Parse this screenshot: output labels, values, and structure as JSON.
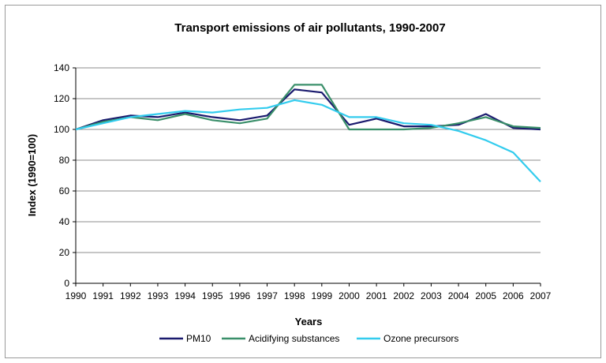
{
  "chart_data": {
    "type": "line",
    "title": "Transport emissions of air pollutants, 1990-2007",
    "xlabel": "Years",
    "ylabel": "Index (1990=100)",
    "ylim": [
      0,
      140
    ],
    "yticks": [
      "0",
      "20",
      "40",
      "60",
      "80",
      "100",
      "120",
      "140"
    ],
    "categories": [
      "1990",
      "1991",
      "1992",
      "1993",
      "1994",
      "1995",
      "1996",
      "1997",
      "1998",
      "1999",
      "2000",
      "2001",
      "2002",
      "2003",
      "2004",
      "2005",
      "2006",
      "2007"
    ],
    "grid": true,
    "legend_position": "bottom",
    "series": [
      {
        "name": "PM10",
        "color": "#1a1a6e",
        "values": [
          100,
          106,
          109,
          108,
          111,
          108,
          106,
          109,
          126,
          124,
          103,
          107,
          102,
          102,
          103,
          110,
          101,
          100
        ]
      },
      {
        "name": "Acidifying substances",
        "color": "#3a8f6a",
        "values": [
          100,
          105,
          108,
          106,
          110,
          106,
          104,
          107,
          129,
          129,
          100,
          100,
          100,
          101,
          104,
          108,
          102,
          101
        ]
      },
      {
        "name": "Ozone precursors",
        "color": "#33ccee",
        "values": [
          100,
          104,
          108,
          110,
          112,
          111,
          113,
          114,
          119,
          116,
          108,
          108,
          104,
          103,
          99,
          93,
          85,
          66
        ]
      }
    ]
  }
}
